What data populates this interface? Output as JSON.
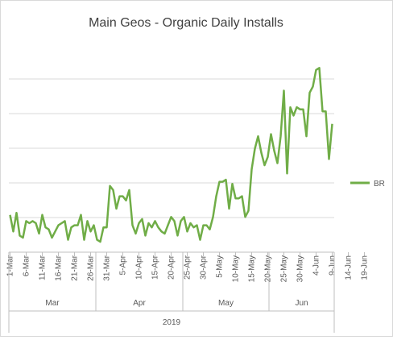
{
  "chart_data": {
    "type": "line",
    "title": "Main Geos - Organic Daily Installs",
    "xlabel": "",
    "ylabel": "",
    "grid": true,
    "y_tick_labels": false,
    "legend_position": "right",
    "colors": {
      "series": "#70ad47",
      "grid": "#d9d9d9",
      "axis": "#bfbfbf",
      "text": "#595959"
    },
    "ylim": [
      0,
      100
    ],
    "x_tick_labels": [
      "1-Mar",
      "6-Mar",
      "11-Mar",
      "16-Mar",
      "21-Mar",
      "26-Mar",
      "31-Mar",
      "5-Apr",
      "10-Apr",
      "15-Apr",
      "20-Apr",
      "25-Apr",
      "30-Apr",
      "5-May",
      "10-May",
      "15-May",
      "20-May",
      "25-May",
      "30-May",
      "4-Jun",
      "9-Jun",
      "14-Jun",
      "19-Jun"
    ],
    "month_labels": [
      "Mar",
      "Apr",
      "May",
      "Jun"
    ],
    "year_label": "2019",
    "series": [
      {
        "name": "BR",
        "values": [
          18,
          10,
          19,
          8,
          7,
          15,
          14,
          15,
          14,
          9,
          18,
          12,
          11,
          7,
          10,
          13,
          14,
          15,
          6,
          12,
          13,
          13,
          18,
          6,
          15,
          10,
          13,
          6,
          5,
          12,
          12,
          32,
          30,
          21,
          27,
          27,
          25,
          30,
          13,
          9,
          14,
          16,
          8,
          14,
          12,
          15,
          12,
          10,
          9,
          13,
          17,
          15,
          8,
          15,
          17,
          10,
          14,
          12,
          13,
          6,
          13,
          13,
          11,
          17,
          27,
          34,
          34,
          35,
          21,
          33,
          26,
          26,
          27,
          17,
          20,
          40,
          50,
          56,
          48,
          42,
          46,
          57,
          49,
          43,
          56,
          78,
          38,
          70,
          66,
          70,
          69,
          69,
          56,
          77,
          80,
          88,
          89,
          68,
          68,
          45,
          62
        ],
        "color": "#70ad47"
      }
    ]
  }
}
